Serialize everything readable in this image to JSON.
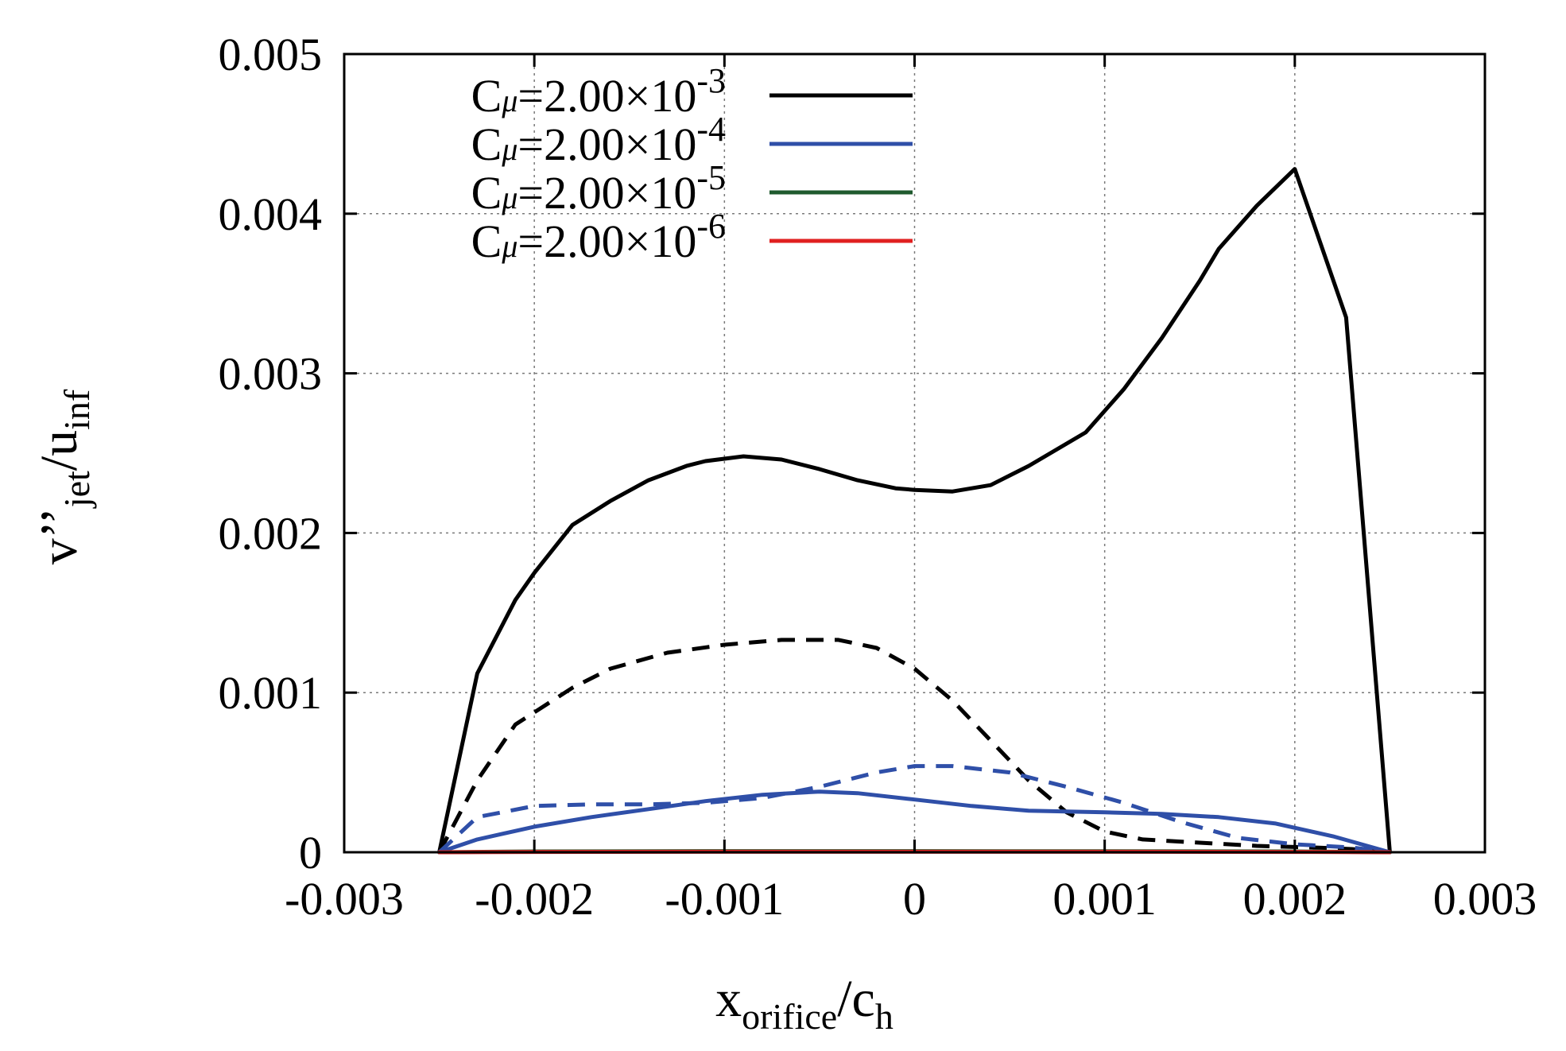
{
  "chart_data": {
    "type": "line",
    "title": "",
    "xlabel": {
      "main": "x",
      "sub": "orifice",
      "sep": "/",
      "main2": "c",
      "sub2": "h"
    },
    "ylabel": {
      "main": "v",
      "prime": "’’",
      "sub": "jet",
      "sep": "/",
      "main2": "u",
      "sub2": "inf"
    },
    "xlim": [
      -0.003,
      0.003
    ],
    "ylim": [
      0,
      0.005
    ],
    "xticks": [
      -0.003,
      -0.002,
      -0.001,
      0,
      0.001,
      0.002,
      0.003
    ],
    "xtick_labels": [
      "-0.003",
      "-0.002",
      "-0.001",
      "0",
      "0.001",
      "0.002",
      "0.003"
    ],
    "yticks": [
      0,
      0.001,
      0.002,
      0.003,
      0.004,
      0.005
    ],
    "ytick_labels": [
      "0",
      "0.001",
      "0.002",
      "0.003",
      "0.004",
      "0.005"
    ],
    "grid": true,
    "legend_position": "top-left",
    "legend": [
      {
        "prefix": "C",
        "mu": "μ",
        "text": "=2.00×10",
        "exp": "-3",
        "color": "#000000"
      },
      {
        "prefix": "C",
        "mu": "μ",
        "text": "=2.00×10",
        "exp": "-4",
        "color": "#2f4fa8"
      },
      {
        "prefix": "C",
        "mu": "μ",
        "text": "=2.00×10",
        "exp": "-5",
        "color": "#1f5a2e"
      },
      {
        "prefix": "C",
        "mu": "μ",
        "text": "=2.00×10",
        "exp": "-6",
        "color": "#e02020"
      }
    ],
    "series": [
      {
        "name": "Cμ=2.00×10-3 solid",
        "color": "#000000",
        "style": "solid",
        "x": [
          -0.0025,
          -0.0023,
          -0.0021,
          -0.002,
          -0.0018,
          -0.0016,
          -0.0014,
          -0.0012,
          -0.0011,
          -0.0009,
          -0.0007,
          -0.0005,
          -0.0003,
          -0.0001,
          0,
          0.0002,
          0.0004,
          0.0006,
          0.0009,
          0.0011,
          0.0013,
          0.0015,
          0.0016,
          0.0018,
          0.002,
          0.00227,
          0.0025
        ],
        "y": [
          0,
          0.00112,
          0.00158,
          0.00175,
          0.00205,
          0.0022,
          0.00233,
          0.00242,
          0.00245,
          0.00248,
          0.00246,
          0.0024,
          0.00233,
          0.00228,
          0.00227,
          0.00226,
          0.0023,
          0.00242,
          0.00263,
          0.0029,
          0.00322,
          0.00358,
          0.00378,
          0.00405,
          0.00428,
          0.00335,
          0
        ]
      },
      {
        "name": "Cμ=2.00×10-3 dashed",
        "color": "#000000",
        "style": "dashed",
        "x": [
          -0.0025,
          -0.0023,
          -0.0021,
          -0.0018,
          -0.0016,
          -0.0013,
          -0.001,
          -0.0007,
          -0.0004,
          -0.0002,
          0,
          0.0002,
          0.0004,
          0.0006,
          0.0008,
          0.001,
          0.0012,
          0.0015,
          0.0018,
          0.0021,
          0.0023,
          0.0025
        ],
        "y": [
          0,
          0.00045,
          0.0008,
          0.00103,
          0.00115,
          0.00125,
          0.0013,
          0.00133,
          0.00133,
          0.00128,
          0.00115,
          0.00095,
          0.0007,
          0.00045,
          0.00025,
          0.00013,
          8e-05,
          6e-05,
          4e-05,
          3e-05,
          2e-05,
          0
        ]
      },
      {
        "name": "Cμ=2.00×10-4 solid",
        "color": "#2f4fa8",
        "style": "solid",
        "x": [
          -0.0025,
          -0.0023,
          -0.002,
          -0.0017,
          -0.0014,
          -0.0011,
          -0.0008,
          -0.0005,
          -0.0003,
          0,
          0.0003,
          0.0006,
          0.001,
          0.0013,
          0.0016,
          0.0019,
          0.0022,
          0.0025
        ],
        "y": [
          0,
          8e-05,
          0.00016,
          0.00022,
          0.00027,
          0.00032,
          0.00036,
          0.00038,
          0.00037,
          0.00033,
          0.00029,
          0.00026,
          0.00025,
          0.00024,
          0.00022,
          0.00018,
          0.0001,
          0
        ]
      },
      {
        "name": "Cμ=2.00×10-4 dashed",
        "color": "#2f4fa8",
        "style": "dashed",
        "x": [
          -0.0025,
          -0.0023,
          -0.002,
          -0.0017,
          -0.0014,
          -0.0011,
          -0.0008,
          -0.0005,
          -0.0002,
          0,
          0.0002,
          0.0005,
          0.0008,
          0.0011,
          0.0014,
          0.0017,
          0.002,
          0.0023,
          0.0025
        ],
        "y": [
          0,
          0.00022,
          0.00029,
          0.0003,
          0.0003,
          0.00031,
          0.00034,
          0.00041,
          0.0005,
          0.00054,
          0.00054,
          0.0005,
          0.00041,
          0.00031,
          0.00019,
          9e-05,
          5e-05,
          3e-05,
          0
        ]
      },
      {
        "name": "Cμ=2.00×10-5",
        "color": "#1f5a2e",
        "style": "solid",
        "x": [
          -0.0025,
          -0.002,
          -0.001,
          0,
          0.001,
          0.002,
          0.0025
        ],
        "y": [
          0,
          5e-06,
          7e-06,
          7e-06,
          6e-06,
          5e-06,
          0
        ]
      },
      {
        "name": "Cμ=2.00×10-6",
        "color": "#e02020",
        "style": "solid",
        "x": [
          -0.0025,
          -0.002,
          -0.001,
          0,
          0.001,
          0.002,
          0.0025
        ],
        "y": [
          0,
          2e-06,
          3e-06,
          3e-06,
          3e-06,
          2e-06,
          0
        ]
      }
    ]
  }
}
